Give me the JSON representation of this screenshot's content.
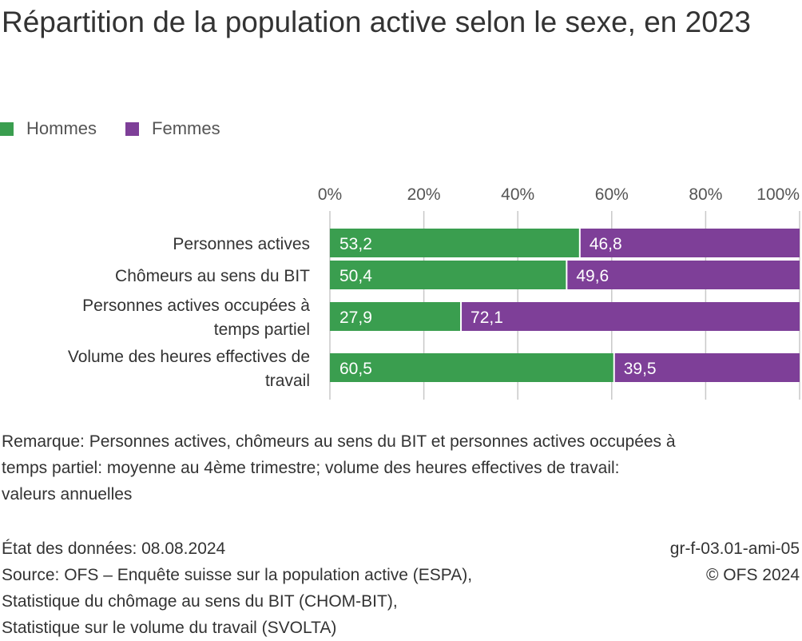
{
  "title": "Répartition de la population active selon le sexe, en 2023",
  "legend": [
    {
      "name": "Hommes",
      "color": "#3a9e4f"
    },
    {
      "name": "Femmes",
      "color": "#7e3f98"
    }
  ],
  "chart_data": {
    "type": "bar",
    "orientation": "horizontal",
    "stacked": true,
    "categories": [
      [
        "Personnes actives"
      ],
      [
        "Chômeurs au sens du BIT"
      ],
      [
        "Personnes actives occupées à",
        "temps partiel"
      ],
      [
        "Volume des heures effectives de",
        "travail"
      ]
    ],
    "series": [
      {
        "name": "Hommes",
        "color": "#3a9e4f",
        "values": [
          53.2,
          50.4,
          27.9,
          60.5
        ],
        "labels": [
          "53,2",
          "50,4",
          "27,9",
          "60,5"
        ]
      },
      {
        "name": "Femmes",
        "color": "#7e3f98",
        "values": [
          46.8,
          49.6,
          72.1,
          39.5
        ],
        "labels": [
          "46,8",
          "49,6",
          "72,1",
          "39,5"
        ]
      }
    ],
    "xlim": [
      0,
      100
    ],
    "xticks": [
      0,
      20,
      40,
      60,
      80,
      100
    ],
    "xtick_labels": [
      "0%",
      "20%",
      "40%",
      "60%",
      "80%",
      "100%"
    ],
    "axis_position": "top",
    "grid": true,
    "legend_position": "top-left"
  },
  "note": [
    "Remarque: Personnes actives, chômeurs au sens du BIT et personnes actives occupées à",
    "temps partiel: moyenne au 4ème trimestre; volume des heures effectives de travail:",
    "valeurs annuelles"
  ],
  "footer": {
    "date": "État des données: 08.08.2024",
    "source": [
      "Source: OFS – Enquête suisse sur la population active (ESPA),",
      "Statistique du chômage au sens du BIT (CHOM-BIT),",
      "Statistique sur le volume du travail (SVOLTA)"
    ],
    "code": "gr-f-03.01-ami-05",
    "copyright": "© OFS 2024"
  }
}
